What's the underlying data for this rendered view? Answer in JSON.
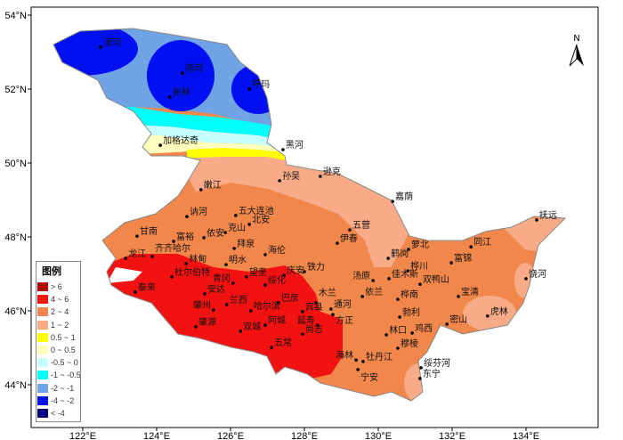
{
  "axes": {
    "lon_ticks": [
      "122°E",
      "124°E",
      "126°E",
      "128°E",
      "130°E",
      "132°E",
      "134°E"
    ],
    "lon_values": [
      122,
      124,
      126,
      128,
      130,
      132,
      134
    ],
    "lat_ticks": [
      "54°N",
      "52°N",
      "50°N",
      "48°N",
      "46°N",
      "44°N"
    ],
    "lat_values": [
      54,
      52,
      50,
      48,
      46,
      44
    ]
  },
  "north_arrow": {
    "label": "N"
  },
  "legend": {
    "title": "图例",
    "items": [
      {
        "label": "> 6",
        "color": "#b00000"
      },
      {
        "label": "4 ~ 6",
        "color": "#f21212"
      },
      {
        "label": "2 ~ 4",
        "color": "#f2874c"
      },
      {
        "label": "1 ~ 2",
        "color": "#f8ab86"
      },
      {
        "label": "0.5 ~ 1",
        "color": "#ffff00"
      },
      {
        "label": "0 ~ 0.5",
        "color": "#ffffbe"
      },
      {
        "label": "-0.5 ~ 0",
        "color": "#c6ffff"
      },
      {
        "label": "-1 ~ -0.5",
        "color": "#00ffff"
      },
      {
        "label": "-2 ~ -1",
        "color": "#6fa3e4"
      },
      {
        "label": "-4 ~ -2",
        "color": "#0010f0"
      },
      {
        "label": "< -4",
        "color": "#00007f"
      }
    ]
  },
  "stations": [
    {
      "name": "漠河",
      "lon": 122.48,
      "lat": 53.13
    },
    {
      "name": "塔河",
      "lon": 124.7,
      "lat": 52.43
    },
    {
      "name": "新林",
      "lon": 124.36,
      "lat": 51.78
    },
    {
      "name": "呼玛",
      "lon": 126.51,
      "lat": 52.0
    },
    {
      "name": "加格达奇",
      "lon": 124.1,
      "lat": 50.48
    },
    {
      "name": "黑河",
      "lon": 127.42,
      "lat": 50.36
    },
    {
      "name": "孙吴",
      "lon": 127.33,
      "lat": 49.52
    },
    {
      "name": "逊克",
      "lon": 128.43,
      "lat": 49.64
    },
    {
      "name": "嫩江",
      "lon": 125.2,
      "lat": 49.28
    },
    {
      "name": "讷河",
      "lon": 124.82,
      "lat": 48.55
    },
    {
      "name": "五大连池",
      "lon": 126.14,
      "lat": 48.58
    },
    {
      "name": "北安",
      "lon": 126.51,
      "lat": 48.34
    },
    {
      "name": "克山",
      "lon": 125.86,
      "lat": 48.12
    },
    {
      "name": "依安",
      "lon": 125.28,
      "lat": 47.98
    },
    {
      "name": "富裕",
      "lon": 124.46,
      "lat": 47.88
    },
    {
      "name": "甘南",
      "lon": 123.47,
      "lat": 48.02
    },
    {
      "name": "拜泉",
      "lon": 126.1,
      "lat": 47.69
    },
    {
      "name": "海伦",
      "lon": 126.94,
      "lat": 47.52
    },
    {
      "name": "龙江",
      "lon": 123.16,
      "lat": 47.42
    },
    {
      "name": "齐齐哈尔",
      "lon": 123.88,
      "lat": 47.47
    },
    {
      "name": "林甸",
      "lon": 124.8,
      "lat": 47.28
    },
    {
      "name": "明水",
      "lon": 125.88,
      "lat": 47.25
    },
    {
      "name": "杜尔伯特",
      "lon": 124.41,
      "lat": 46.92
    },
    {
      "name": "泰来",
      "lon": 123.42,
      "lat": 46.51
    },
    {
      "name": "庆安",
      "lon": 127.45,
      "lat": 46.96
    },
    {
      "name": "铁力",
      "lon": 128.0,
      "lat": 47.06
    },
    {
      "name": "青冈",
      "lon": 126.07,
      "lat": 46.75
    },
    {
      "name": "望奎",
      "lon": 126.43,
      "lat": 46.92
    },
    {
      "name": "绥化",
      "lon": 126.94,
      "lat": 46.7
    },
    {
      "name": "安达",
      "lon": 125.3,
      "lat": 46.46
    },
    {
      "name": "兰西",
      "lon": 125.9,
      "lat": 46.17
    },
    {
      "name": "肇州",
      "lon": 125.54,
      "lat": 46.02
    },
    {
      "name": "肇源",
      "lon": 125.06,
      "lat": 45.57
    },
    {
      "name": "哈尔滨",
      "lon": 126.55,
      "lat": 46.0
    },
    {
      "name": "巴彦",
      "lon": 127.3,
      "lat": 46.22
    },
    {
      "name": "宾县",
      "lon": 127.95,
      "lat": 45.98
    },
    {
      "name": "木兰",
      "lon": 128.31,
      "lat": 46.22
    },
    {
      "name": "通河",
      "lon": 128.72,
      "lat": 46.05
    },
    {
      "name": "方正",
      "lon": 128.77,
      "lat": 45.9
    },
    {
      "name": "延寿",
      "lon": 128.36,
      "lat": 45.61
    },
    {
      "name": "尚志",
      "lon": 127.95,
      "lat": 45.37
    },
    {
      "name": "五常",
      "lon": 127.11,
      "lat": 45.01
    },
    {
      "name": "阿城",
      "lon": 126.94,
      "lat": 45.61
    },
    {
      "name": "双城",
      "lon": 126.27,
      "lat": 45.45
    },
    {
      "name": "嘉荫",
      "lon": 130.39,
      "lat": 48.96
    },
    {
      "name": "五营",
      "lon": 129.23,
      "lat": 48.19
    },
    {
      "name": "伊春",
      "lon": 128.89,
      "lat": 47.83
    },
    {
      "name": "萝北",
      "lon": 130.82,
      "lat": 47.66
    },
    {
      "name": "鹤岗",
      "lon": 130.27,
      "lat": 47.42
    },
    {
      "name": "同江",
      "lon": 132.51,
      "lat": 47.73
    },
    {
      "name": "抚远",
      "lon": 134.29,
      "lat": 48.46
    },
    {
      "name": "富锦",
      "lon": 131.98,
      "lat": 47.3
    },
    {
      "name": "桦川",
      "lon": 130.8,
      "lat": 47.08
    },
    {
      "name": "汤原",
      "lon": 129.86,
      "lat": 46.82
    },
    {
      "name": "佳木斯",
      "lon": 130.29,
      "lat": 46.87
    },
    {
      "name": "双鸭山",
      "lon": 131.13,
      "lat": 46.72
    },
    {
      "name": "饶河",
      "lon": 134.0,
      "lat": 46.87
    },
    {
      "name": "依兰",
      "lon": 129.57,
      "lat": 46.39
    },
    {
      "name": "桦南",
      "lon": 130.53,
      "lat": 46.31
    },
    {
      "name": "宝清",
      "lon": 132.17,
      "lat": 46.39
    },
    {
      "name": "勃利",
      "lon": 130.58,
      "lat": 45.83
    },
    {
      "name": "虎林",
      "lon": 132.96,
      "lat": 45.86
    },
    {
      "name": "密山",
      "lon": 131.86,
      "lat": 45.64
    },
    {
      "name": "林口",
      "lon": 130.22,
      "lat": 45.35
    },
    {
      "name": "鸡西",
      "lon": 130.92,
      "lat": 45.4
    },
    {
      "name": "穆棱",
      "lon": 130.53,
      "lat": 44.99
    },
    {
      "name": "海林",
      "lon": 129.4,
      "lat": 44.67
    },
    {
      "name": "牡丹江",
      "lon": 129.59,
      "lat": 44.63
    },
    {
      "name": "宁安",
      "lon": 129.45,
      "lat": 44.41
    },
    {
      "name": "绥芬河",
      "lon": 131.16,
      "lat": 44.46
    },
    {
      "name": "东宁",
      "lon": 131.13,
      "lat": 44.17
    }
  ]
}
